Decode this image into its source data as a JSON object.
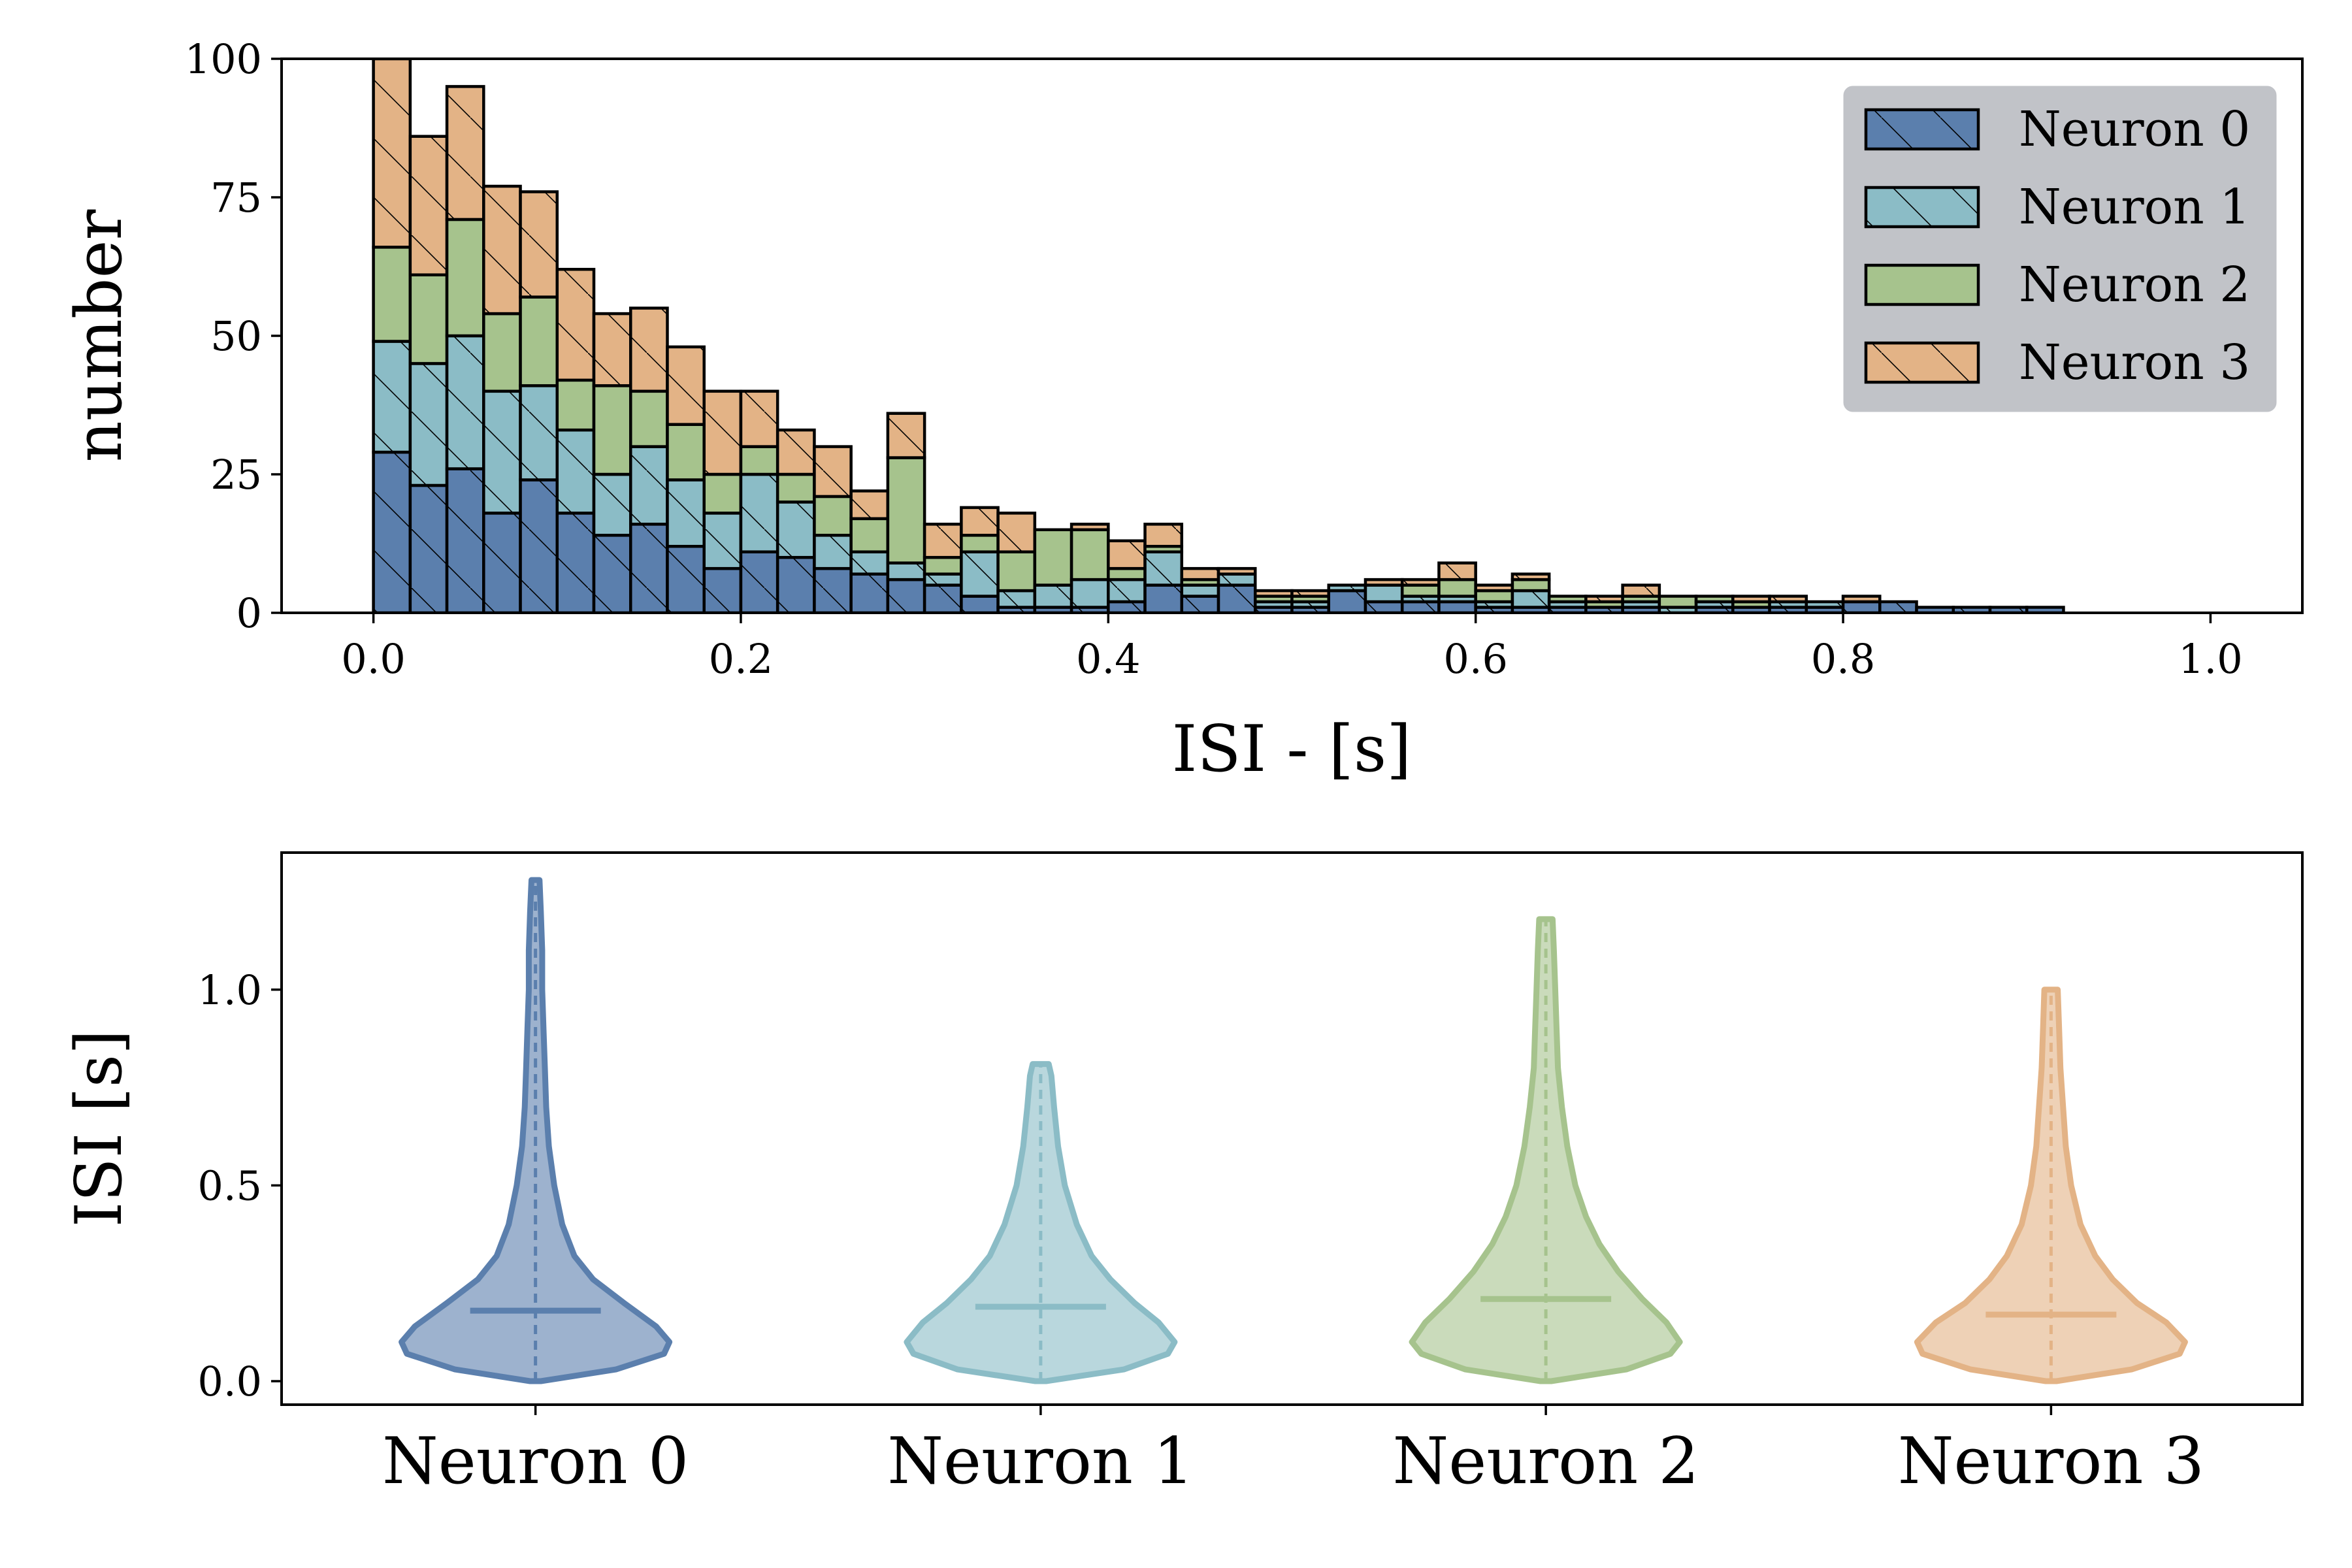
{
  "chart_data": [
    {
      "type": "bar",
      "stacked": true,
      "xlabel": "ISI - [s]",
      "ylabel": "number",
      "xlim": [
        -0.05,
        1.05
      ],
      "ylim": [
        0,
        100
      ],
      "xticks": [
        "0.0",
        "0.2",
        "0.4",
        "0.6",
        "0.8",
        "1.0"
      ],
      "yticks": [
        "0",
        "25",
        "50",
        "75",
        "100"
      ],
      "legend_position": "top-right",
      "legend": [
        "Neuron 0",
        "Neuron 1",
        "Neuron 2",
        "Neuron 3"
      ],
      "colors": [
        "#5b7fad",
        "#8bbcc6",
        "#a6c38d",
        "#e3b386"
      ],
      "bin_width": 0.02,
      "x": [
        0.0,
        0.02,
        0.04,
        0.06,
        0.08,
        0.1,
        0.12,
        0.14,
        0.16,
        0.18,
        0.2,
        0.22,
        0.24,
        0.26,
        0.28,
        0.3,
        0.32,
        0.34,
        0.36,
        0.38,
        0.4,
        0.42,
        0.44,
        0.46,
        0.48,
        0.5,
        0.52,
        0.54,
        0.56,
        0.58,
        0.6,
        0.62,
        0.64,
        0.66,
        0.68,
        0.7,
        0.72,
        0.74,
        0.76,
        0.78,
        0.8,
        0.82,
        0.84,
        0.86,
        0.88,
        0.9,
        0.92,
        0.94,
        0.96,
        0.98
      ],
      "series": [
        {
          "name": "Neuron 0",
          "values": [
            29,
            23,
            26,
            18,
            24,
            18,
            14,
            16,
            12,
            8,
            11,
            10,
            8,
            7,
            6,
            5,
            3,
            1,
            1,
            1,
            2,
            5,
            3,
            5,
            1,
            1,
            4,
            2,
            2,
            2,
            1,
            1,
            1,
            1,
            1,
            0,
            1,
            1,
            1,
            1,
            2,
            2,
            1,
            1,
            1,
            1,
            0,
            0,
            0,
            0
          ]
        },
        {
          "name": "Neuron 1",
          "values": [
            20,
            22,
            24,
            22,
            17,
            15,
            11,
            14,
            12,
            10,
            14,
            10,
            6,
            4,
            3,
            2,
            8,
            3,
            4,
            5,
            4,
            6,
            2,
            2,
            1,
            1,
            1,
            3,
            1,
            1,
            1,
            3,
            1,
            0,
            1,
            1,
            1,
            0,
            1,
            1,
            0,
            0,
            0,
            0,
            0,
            0,
            0,
            0,
            0,
            0
          ]
        },
        {
          "name": "Neuron 2",
          "values": [
            17,
            16,
            21,
            14,
            16,
            9,
            16,
            10,
            10,
            7,
            5,
            5,
            7,
            6,
            19,
            3,
            3,
            7,
            10,
            9,
            2,
            1,
            1,
            0,
            1,
            1,
            0,
            0,
            2,
            3,
            2,
            2,
            1,
            1,
            1,
            2,
            1,
            1,
            0,
            0,
            0,
            0,
            0,
            0,
            0,
            0,
            0,
            0,
            0,
            0
          ]
        },
        {
          "name": "Neuron 3",
          "values": [
            34,
            25,
            24,
            23,
            19,
            20,
            13,
            15,
            14,
            15,
            10,
            8,
            9,
            5,
            8,
            6,
            5,
            7,
            0,
            1,
            5,
            4,
            2,
            1,
            1,
            1,
            0,
            1,
            1,
            3,
            1,
            1,
            0,
            1,
            2,
            0,
            0,
            1,
            1,
            0,
            1,
            0,
            0,
            0,
            0,
            0,
            0,
            0,
            0,
            0
          ]
        }
      ]
    },
    {
      "type": "violin",
      "categories": [
        "Neuron 0",
        "Neuron 1",
        "Neuron 2",
        "Neuron 3"
      ],
      "ylabel": "ISI [s]",
      "ylim": [
        -0.06,
        1.35
      ],
      "yticks": [
        "0.0",
        "0.5",
        "1.0"
      ],
      "colors": [
        "#5b7fad",
        "#8bbcc6",
        "#a6c38d",
        "#e3b386"
      ],
      "series": [
        {
          "name": "Neuron 0",
          "min": 0.0,
          "max": 1.28,
          "median": 0.18,
          "width_profile": [
            [
              0.0,
              0.04
            ],
            [
              0.03,
              0.6
            ],
            [
              0.07,
              0.96
            ],
            [
              0.1,
              1.0
            ],
            [
              0.14,
              0.9
            ],
            [
              0.2,
              0.66
            ],
            [
              0.26,
              0.43
            ],
            [
              0.32,
              0.29
            ],
            [
              0.4,
              0.2
            ],
            [
              0.5,
              0.14
            ],
            [
              0.6,
              0.1
            ],
            [
              0.7,
              0.08
            ],
            [
              0.8,
              0.07
            ],
            [
              0.9,
              0.06
            ],
            [
              1.0,
              0.05
            ],
            [
              1.1,
              0.05
            ],
            [
              1.2,
              0.04
            ],
            [
              1.28,
              0.03
            ]
          ]
        },
        {
          "name": "Neuron 1",
          "min": 0.0,
          "max": 0.81,
          "median": 0.19,
          "width_profile": [
            [
              0.0,
              0.04
            ],
            [
              0.03,
              0.62
            ],
            [
              0.07,
              0.95
            ],
            [
              0.1,
              1.0
            ],
            [
              0.15,
              0.88
            ],
            [
              0.2,
              0.7
            ],
            [
              0.26,
              0.52
            ],
            [
              0.32,
              0.38
            ],
            [
              0.4,
              0.27
            ],
            [
              0.5,
              0.18
            ],
            [
              0.6,
              0.13
            ],
            [
              0.7,
              0.1
            ],
            [
              0.78,
              0.08
            ],
            [
              0.81,
              0.06
            ]
          ]
        },
        {
          "name": "Neuron 2",
          "min": 0.0,
          "max": 1.18,
          "median": 0.21,
          "width_profile": [
            [
              0.0,
              0.04
            ],
            [
              0.03,
              0.6
            ],
            [
              0.07,
              0.93
            ],
            [
              0.1,
              1.0
            ],
            [
              0.15,
              0.9
            ],
            [
              0.21,
              0.72
            ],
            [
              0.28,
              0.54
            ],
            [
              0.35,
              0.4
            ],
            [
              0.42,
              0.3
            ],
            [
              0.5,
              0.22
            ],
            [
              0.6,
              0.16
            ],
            [
              0.7,
              0.12
            ],
            [
              0.8,
              0.09
            ],
            [
              0.9,
              0.08
            ],
            [
              1.0,
              0.07
            ],
            [
              1.1,
              0.06
            ],
            [
              1.18,
              0.05
            ]
          ]
        },
        {
          "name": "Neuron 3",
          "min": 0.0,
          "max": 1.0,
          "median": 0.17,
          "width_profile": [
            [
              0.0,
              0.04
            ],
            [
              0.03,
              0.6
            ],
            [
              0.07,
              0.96
            ],
            [
              0.1,
              1.0
            ],
            [
              0.15,
              0.86
            ],
            [
              0.2,
              0.64
            ],
            [
              0.26,
              0.46
            ],
            [
              0.32,
              0.33
            ],
            [
              0.4,
              0.22
            ],
            [
              0.5,
              0.15
            ],
            [
              0.6,
              0.11
            ],
            [
              0.7,
              0.09
            ],
            [
              0.8,
              0.07
            ],
            [
              0.9,
              0.06
            ],
            [
              1.0,
              0.05
            ]
          ]
        }
      ]
    }
  ]
}
